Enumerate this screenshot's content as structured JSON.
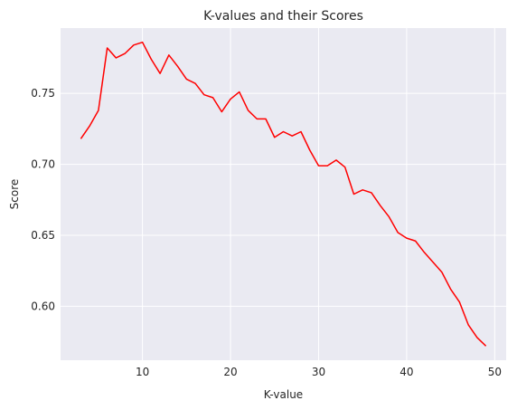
{
  "chart_data": {
    "type": "line",
    "title": "K-values and their Scores",
    "xlabel": "K-value",
    "ylabel": "Score",
    "xlim": [
      0.7,
      51.3
    ],
    "ylim": [
      0.562,
      0.796
    ],
    "xticks": [
      10,
      20,
      30,
      40,
      50
    ],
    "yticks": [
      0.6,
      0.65,
      0.7,
      0.75
    ],
    "xtick_labels": [
      "10",
      "20",
      "30",
      "40",
      "50"
    ],
    "ytick_labels": [
      "0.60",
      "0.65",
      "0.70",
      "0.75"
    ],
    "grid": true,
    "background_color": "#eaeaf2",
    "series": [
      {
        "color": "#ff0000",
        "x": [
          3,
          4,
          5,
          6,
          7,
          8,
          9,
          10,
          11,
          12,
          13,
          14,
          15,
          16,
          17,
          18,
          19,
          20,
          21,
          22,
          23,
          24,
          25,
          26,
          27,
          28,
          29,
          30,
          31,
          32,
          33,
          34,
          35,
          36,
          37,
          38,
          39,
          40,
          41,
          42,
          43,
          44,
          45,
          46,
          47,
          48,
          49
        ],
        "y": [
          0.718,
          0.727,
          0.738,
          0.782,
          0.775,
          0.778,
          0.784,
          0.786,
          0.774,
          0.764,
          0.777,
          0.769,
          0.76,
          0.757,
          0.749,
          0.747,
          0.737,
          0.746,
          0.751,
          0.738,
          0.732,
          0.732,
          0.719,
          0.723,
          0.72,
          0.723,
          0.71,
          0.699,
          0.699,
          0.703,
          0.698,
          0.679,
          0.682,
          0.68,
          0.671,
          0.663,
          0.652,
          0.648,
          0.646,
          0.638,
          0.631,
          0.624,
          0.612,
          0.603,
          0.587,
          0.578,
          0.572
        ]
      }
    ]
  }
}
